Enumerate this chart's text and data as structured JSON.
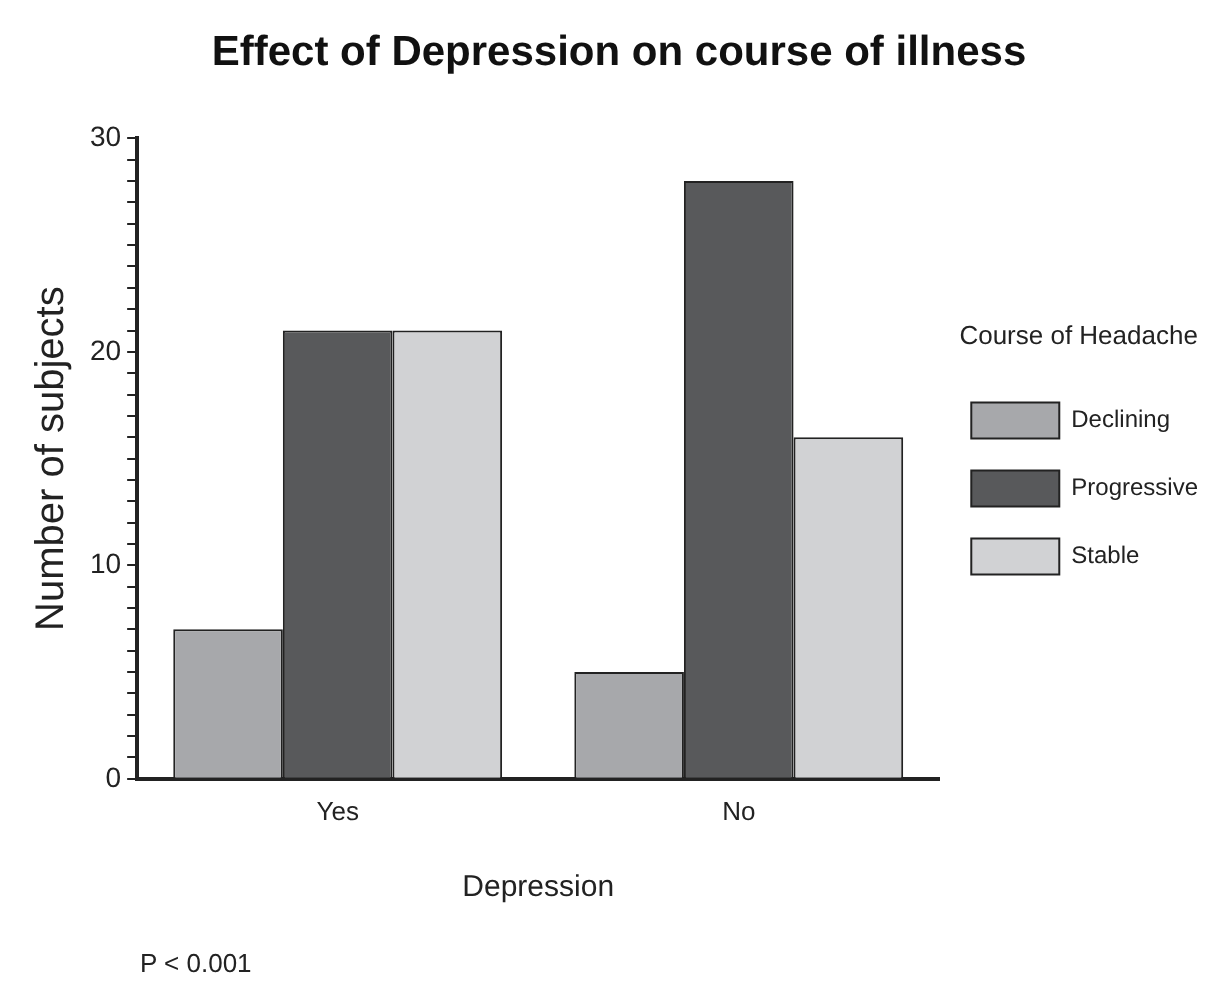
{
  "chart_data": {
    "type": "bar",
    "title": "Effect of Depression on course of illness",
    "xlabel": "Depression",
    "ylabel": "Number of subjects",
    "legend_title": "Course of Headache",
    "categories": [
      "Yes",
      "No"
    ],
    "series": [
      {
        "name": "Declining",
        "color": "#a7a8ab",
        "values": [
          7,
          5
        ]
      },
      {
        "name": "Progressive",
        "color": "#58595b",
        "values": [
          21,
          28
        ]
      },
      {
        "name": "Stable",
        "color": "#d1d2d4",
        "values": [
          21,
          16
        ]
      }
    ],
    "ylim": [
      0,
      30
    ],
    "yticks": [
      0,
      {
        "value": 1,
        "label": null
      },
      {
        "value": 2,
        "label": null
      },
      {
        "value": 3,
        "label": null
      },
      {
        "value": 4,
        "label": null
      },
      {
        "value": 5,
        "label": null
      },
      {
        "value": 6,
        "label": null
      },
      {
        "value": 7,
        "label": null
      },
      {
        "value": 8,
        "label": null
      },
      {
        "value": 9,
        "label": null
      },
      10,
      {
        "value": 11,
        "label": null
      },
      {
        "value": 12,
        "label": null
      },
      {
        "value": 13,
        "label": null
      },
      {
        "value": 14,
        "label": null
      },
      {
        "value": 15,
        "label": null
      },
      {
        "value": 16,
        "label": null
      },
      {
        "value": 17,
        "label": null
      },
      {
        "value": 18,
        "label": null
      },
      {
        "value": 19,
        "label": null
      },
      20,
      {
        "value": 21,
        "label": null
      },
      {
        "value": 22,
        "label": null
      },
      {
        "value": 23,
        "label": null
      },
      {
        "value": 24,
        "label": null
      },
      {
        "value": 25,
        "label": null
      },
      {
        "value": 26,
        "label": null
      },
      {
        "value": 27,
        "label": null
      },
      {
        "value": 28,
        "label": null
      },
      {
        "value": 29,
        "label": null
      },
      30
    ],
    "grid": false,
    "legend": "right",
    "annotations": [
      "P < 0.001"
    ]
  }
}
